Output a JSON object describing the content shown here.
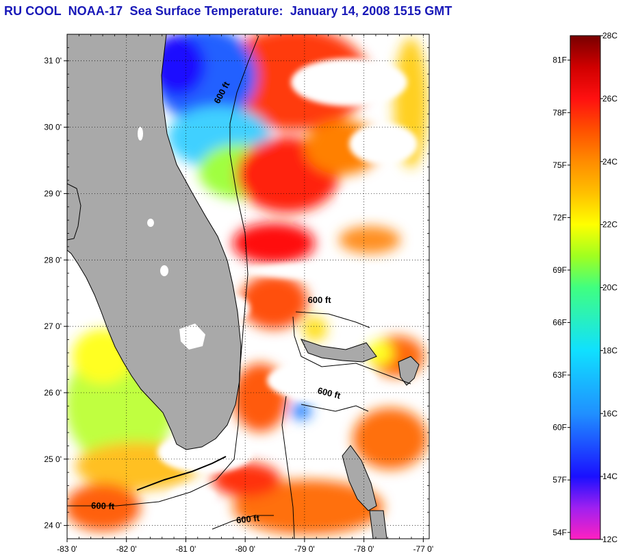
{
  "title": "RU COOL  NOAA-17  Sea Surface Temperature:  January 14, 2008 1515 GMT",
  "colors": {
    "land": "#a9a9a9",
    "cloud": "#ffffff",
    "title": "#1818b8"
  },
  "map": {
    "lon_range": [
      -83.0,
      -76.9
    ],
    "lat_range": [
      23.8,
      31.4
    ],
    "lon_ticks": [
      {
        "value": -83,
        "label": "-83 0'"
      },
      {
        "value": -82,
        "label": "-82 0'"
      },
      {
        "value": -81,
        "label": "-81 0'"
      },
      {
        "value": -80,
        "label": "-80 0'"
      },
      {
        "value": -79,
        "label": "-79 0'"
      },
      {
        "value": -78,
        "label": "-78 0'"
      },
      {
        "value": -77,
        "label": "-77 0'"
      }
    ],
    "lat_ticks": [
      {
        "value": 31,
        "label": "31 0'"
      },
      {
        "value": 30,
        "label": "30 0'"
      },
      {
        "value": 29,
        "label": "29 0'"
      },
      {
        "value": 28,
        "label": "28 0'"
      },
      {
        "value": 27,
        "label": "27 0'"
      },
      {
        "value": 26,
        "label": "26 0'"
      },
      {
        "value": 25,
        "label": "25 0'"
      },
      {
        "value": 24,
        "label": "24 0'"
      }
    ],
    "contour_labels": [
      {
        "text": "600 ft",
        "lon": -80.35,
        "lat": 30.5,
        "rotate": -62
      },
      {
        "text": "600 ft",
        "lon": -78.75,
        "lat": 27.35,
        "rotate": 0
      },
      {
        "text": "600 ft",
        "lon": -78.6,
        "lat": 25.95,
        "rotate": 14
      },
      {
        "text": "600 ft",
        "lon": -82.4,
        "lat": 24.25,
        "rotate": 2
      },
      {
        "text": "600 ft",
        "lon": -79.95,
        "lat": 24.05,
        "rotate": -6
      }
    ],
    "grid": true
  },
  "colorbar": {
    "celsius_ticks": [
      {
        "value": 28,
        "label": "28C"
      },
      {
        "value": 26,
        "label": "26C"
      },
      {
        "value": 24,
        "label": "24C"
      },
      {
        "value": 22,
        "label": "22C"
      },
      {
        "value": 20,
        "label": "20C"
      },
      {
        "value": 18,
        "label": "18C"
      },
      {
        "value": 16,
        "label": "16C"
      },
      {
        "value": 14,
        "label": "14C"
      },
      {
        "value": 12,
        "label": "12C"
      }
    ],
    "fahrenheit_ticks": [
      {
        "value": 81,
        "label": "81F"
      },
      {
        "value": 78,
        "label": "78F"
      },
      {
        "value": 75,
        "label": "75F"
      },
      {
        "value": 72,
        "label": "72F"
      },
      {
        "value": 69,
        "label": "69F"
      },
      {
        "value": 66,
        "label": "66F"
      },
      {
        "value": 63,
        "label": "63F"
      },
      {
        "value": 60,
        "label": "60F"
      },
      {
        "value": 57,
        "label": "57F"
      },
      {
        "value": 54,
        "label": "54F"
      }
    ],
    "range_c": [
      12,
      28
    ],
    "stops": [
      {
        "c": 12,
        "color": "#ff20c0"
      },
      {
        "c": 13,
        "color": "#a020f0"
      },
      {
        "c": 14,
        "color": "#1a10ff"
      },
      {
        "c": 16,
        "color": "#2090ff"
      },
      {
        "c": 18,
        "color": "#10e0ff"
      },
      {
        "c": 20,
        "color": "#40ff80"
      },
      {
        "c": 21,
        "color": "#a0ff20"
      },
      {
        "c": 22,
        "color": "#ffff00"
      },
      {
        "c": 23,
        "color": "#ffc000"
      },
      {
        "c": 24,
        "color": "#ff8c00"
      },
      {
        "c": 25,
        "color": "#ff5000"
      },
      {
        "c": 26,
        "color": "#ff1010"
      },
      {
        "c": 27,
        "color": "#d00000"
      },
      {
        "c": 28,
        "color": "#780000"
      }
    ]
  }
}
